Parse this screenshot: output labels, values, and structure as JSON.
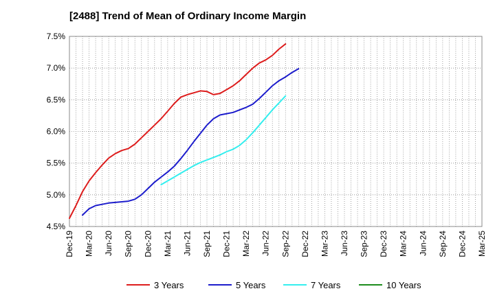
{
  "chart_data": {
    "type": "line",
    "title": "[2488]  Trend of Mean of Ordinary Income Margin",
    "xlabel": "",
    "ylabel": "",
    "ylim": [
      4.5,
      7.5
    ],
    "y_ticks": [
      4.5,
      5.0,
      5.5,
      6.0,
      6.5,
      7.0,
      7.5
    ],
    "y_tick_labels": [
      "4.5%",
      "5.0%",
      "5.5%",
      "6.0%",
      "6.5%",
      "7.0%",
      "7.5%"
    ],
    "x_tick_labels": [
      "Dec-19",
      "Mar-20",
      "Jun-20",
      "Sep-20",
      "Dec-20",
      "Mar-21",
      "Jun-21",
      "Sep-21",
      "Dec-21",
      "Mar-22",
      "Jun-22",
      "Sep-22",
      "Dec-22",
      "Mar-23",
      "Jun-23",
      "Sep-23",
      "Dec-23",
      "Mar-24",
      "Jun-24",
      "Sep-24",
      "Dec-24",
      "Mar-25"
    ],
    "grid": true,
    "legend_position": "bottom",
    "series": [
      {
        "name": "3 Years",
        "color": "#dd1c1c",
        "start_index": 0,
        "values": [
          4.63,
          4.83,
          5.05,
          5.22,
          5.35,
          5.47,
          5.58,
          5.65,
          5.7,
          5.73,
          5.8,
          5.9,
          6.0,
          6.1,
          6.2,
          6.32,
          6.44,
          6.54,
          6.58,
          6.61,
          6.64,
          6.63,
          6.58,
          6.6,
          6.66,
          6.72,
          6.8,
          6.9,
          7.0,
          7.08,
          7.13,
          7.2,
          7.3,
          7.38
        ]
      },
      {
        "name": "5 Years",
        "color": "#1c1ccc",
        "start_index": 2,
        "values": [
          4.68,
          4.78,
          4.83,
          4.85,
          4.87,
          4.88,
          4.89,
          4.9,
          4.93,
          5.0,
          5.1,
          5.2,
          5.28,
          5.36,
          5.45,
          5.57,
          5.7,
          5.84,
          5.97,
          6.1,
          6.2,
          6.26,
          6.28,
          6.3,
          6.34,
          6.38,
          6.43,
          6.52,
          6.62,
          6.72,
          6.8,
          6.86,
          6.93,
          6.99
        ]
      },
      {
        "name": "7 Years",
        "color": "#33eeee",
        "start_index": 14,
        "values": [
          5.16,
          5.22,
          5.28,
          5.34,
          5.4,
          5.46,
          5.51,
          5.55,
          5.59,
          5.63,
          5.68,
          5.72,
          5.78,
          5.87,
          5.98,
          6.1,
          6.22,
          6.34,
          6.45,
          6.56
        ]
      },
      {
        "name": "10 Years",
        "color": "#1c8c1c",
        "start_index": 0,
        "values": []
      }
    ]
  }
}
